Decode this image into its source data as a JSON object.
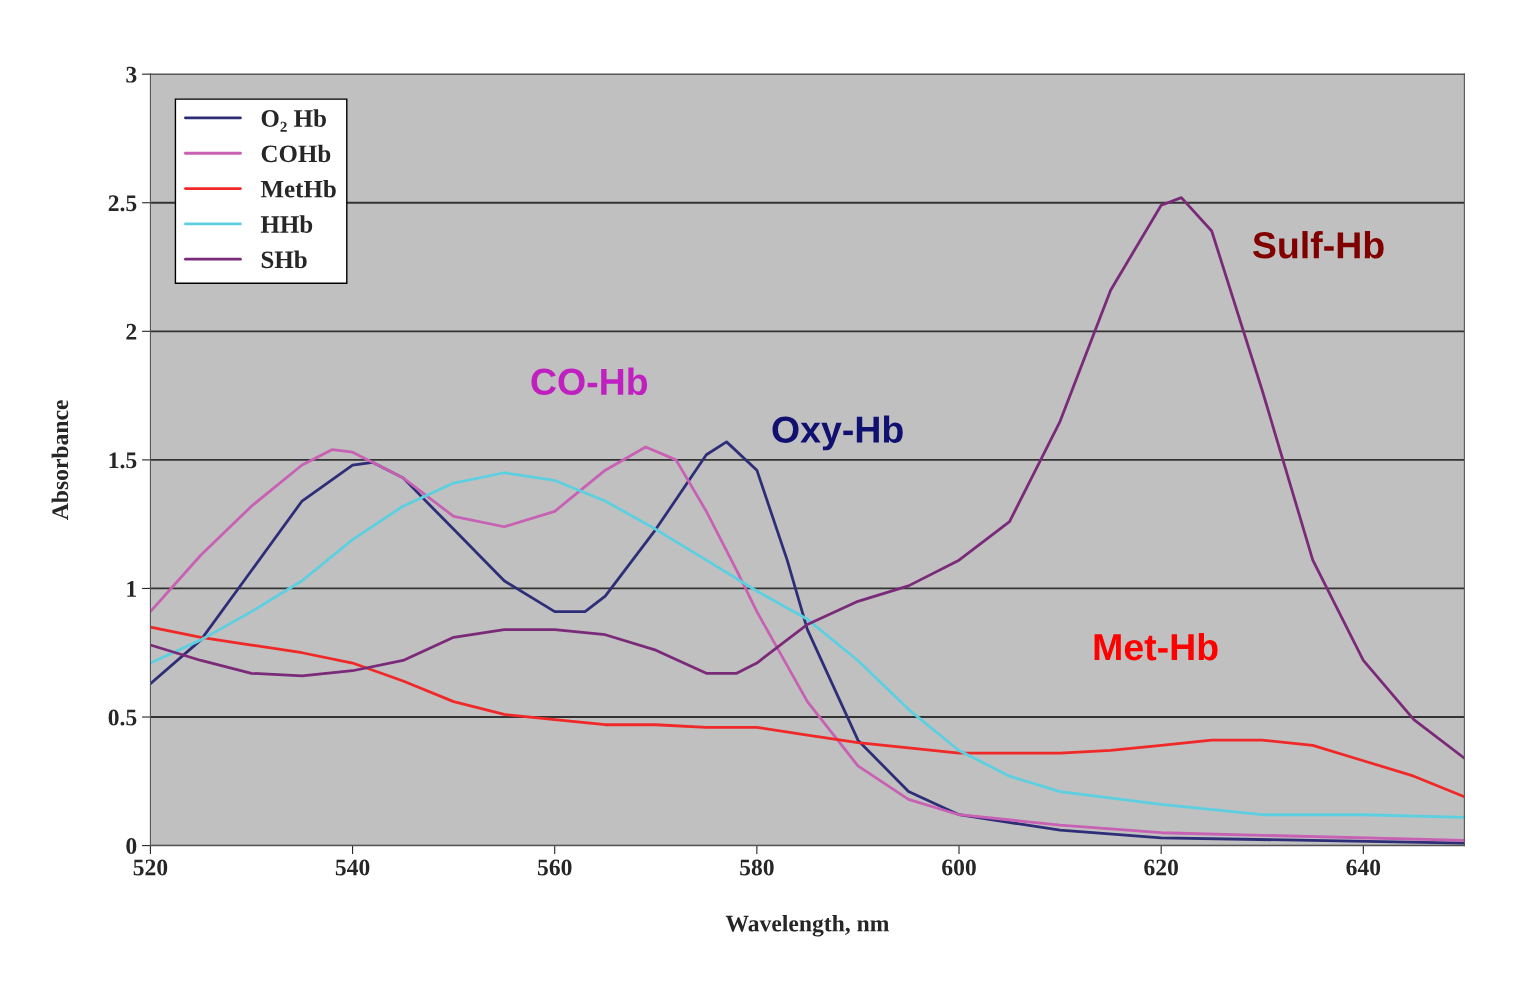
{
  "chart_data": {
    "type": "line",
    "xlabel": "Wavelength, nm",
    "ylabel": "Absorbance",
    "xlim": [
      520,
      650
    ],
    "xticks": [
      520,
      540,
      560,
      580,
      600,
      620,
      640
    ],
    "ylim": [
      0,
      3
    ],
    "yticks": [
      0,
      0.5,
      1,
      1.5,
      2,
      2.5,
      3
    ],
    "grid": "y",
    "legend": "top left",
    "marker": "none",
    "line_style": "solid",
    "series": [
      {
        "name": "O₂ Hb",
        "color": "#2e2e78",
        "x": [
          520,
          525,
          530,
          535,
          540,
          542,
          545,
          550,
          555,
          560,
          563,
          565,
          570,
          575,
          577,
          580,
          583,
          585,
          590,
          595,
          600,
          610,
          620,
          650
        ],
        "values": [
          0.63,
          0.8,
          1.07,
          1.34,
          1.48,
          1.49,
          1.43,
          1.23,
          1.03,
          0.91,
          0.91,
          0.97,
          1.23,
          1.52,
          1.57,
          1.46,
          1.11,
          0.84,
          0.41,
          0.21,
          0.12,
          0.06,
          0.03,
          0.01
        ]
      },
      {
        "name": "COHb",
        "color": "#c860b4",
        "x": [
          520,
          525,
          530,
          535,
          538,
          540,
          545,
          550,
          555,
          560,
          565,
          569,
          572,
          575,
          578,
          580,
          585,
          590,
          595,
          600,
          610,
          620,
          650
        ],
        "values": [
          0.91,
          1.13,
          1.32,
          1.48,
          1.54,
          1.53,
          1.43,
          1.28,
          1.24,
          1.3,
          1.46,
          1.55,
          1.5,
          1.3,
          1.07,
          0.91,
          0.56,
          0.31,
          0.18,
          0.12,
          0.08,
          0.05,
          0.02
        ]
      },
      {
        "name": "MetHb",
        "color": "#f02828",
        "x": [
          520,
          525,
          530,
          535,
          540,
          545,
          550,
          555,
          560,
          565,
          570,
          575,
          580,
          585,
          590,
          595,
          600,
          605,
          610,
          615,
          620,
          625,
          630,
          635,
          640,
          645,
          650
        ],
        "values": [
          0.85,
          0.81,
          0.78,
          0.75,
          0.71,
          0.64,
          0.56,
          0.51,
          0.49,
          0.47,
          0.47,
          0.46,
          0.46,
          0.43,
          0.4,
          0.38,
          0.36,
          0.36,
          0.36,
          0.37,
          0.39,
          0.41,
          0.41,
          0.39,
          0.33,
          0.27,
          0.19
        ]
      },
      {
        "name": "HHb",
        "color": "#5cd0e0",
        "x": [
          520,
          525,
          530,
          535,
          540,
          545,
          550,
          555,
          560,
          565,
          570,
          575,
          580,
          585,
          590,
          595,
          600,
          605,
          610,
          620,
          630,
          640,
          650
        ],
        "values": [
          0.71,
          0.8,
          0.91,
          1.03,
          1.19,
          1.32,
          1.41,
          1.45,
          1.42,
          1.34,
          1.23,
          1.11,
          0.99,
          0.88,
          0.72,
          0.53,
          0.37,
          0.27,
          0.21,
          0.16,
          0.12,
          0.12,
          0.11
        ]
      },
      {
        "name": "SHb",
        "color": "#7a2a78",
        "x": [
          520,
          525,
          530,
          535,
          540,
          545,
          550,
          555,
          560,
          565,
          570,
          575,
          578,
          580,
          585,
          590,
          595,
          600,
          605,
          610,
          615,
          620,
          622,
          625,
          630,
          635,
          640,
          645,
          650
        ],
        "values": [
          0.78,
          0.72,
          0.67,
          0.66,
          0.68,
          0.72,
          0.81,
          0.84,
          0.84,
          0.82,
          0.76,
          0.67,
          0.67,
          0.71,
          0.86,
          0.95,
          1.01,
          1.11,
          1.26,
          1.65,
          2.16,
          2.49,
          2.52,
          2.39,
          1.77,
          1.11,
          0.72,
          0.49,
          0.34
        ]
      }
    ],
    "annotations": [
      "CO-Hb",
      "Oxy-Hb",
      "Sulf-Hb",
      "Met-Hb"
    ]
  }
}
